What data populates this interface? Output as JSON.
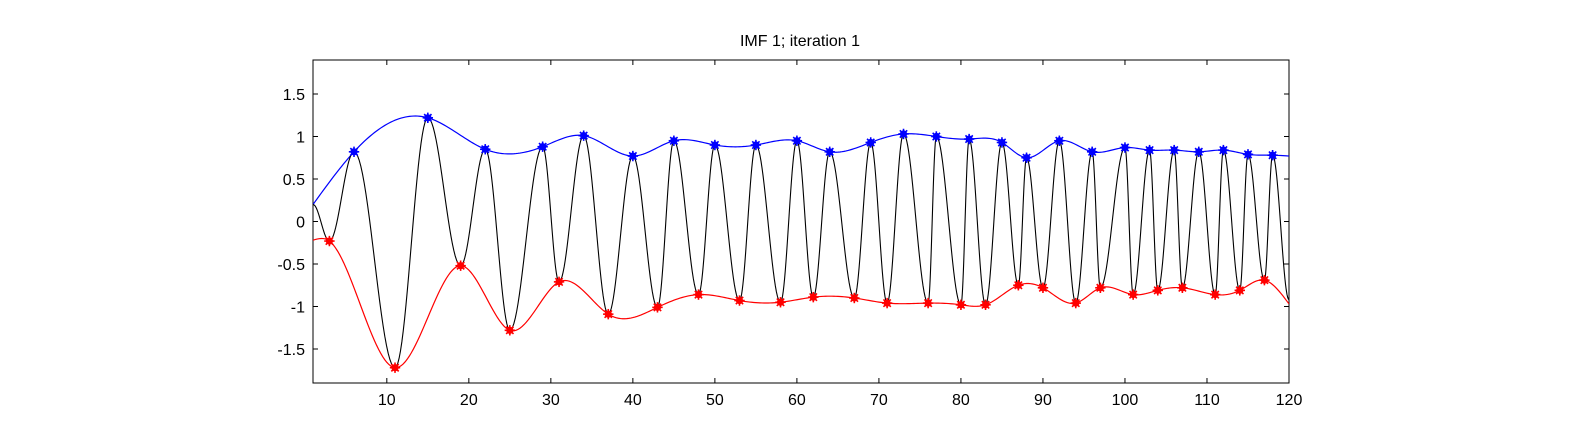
{
  "chart_data": {
    "type": "line",
    "title": "IMF 1;   iteration 1",
    "xlabel": "",
    "ylabel": "",
    "xlim": [
      1,
      120
    ],
    "ylim": [
      -1.9,
      1.9
    ],
    "x_ticks": [
      10,
      20,
      30,
      40,
      50,
      60,
      70,
      80,
      90,
      100,
      110,
      120
    ],
    "x_tick_labels": [
      "10",
      "20",
      "30",
      "40",
      "50",
      "60",
      "70",
      "80",
      "90",
      "100",
      "110",
      "120"
    ],
    "y_ticks": [
      1.5,
      1,
      0.5,
      0,
      -0.5,
      -1,
      -1.5
    ],
    "y_tick_labels": [
      "1.5",
      "1",
      "0.5",
      "0",
      "-0.5",
      "-1",
      "-1.5"
    ],
    "grid": false,
    "colors": {
      "signal": "#000000",
      "upper_envelope": "#0000ff",
      "lower_envelope": "#ff0000",
      "maxima_marker": "#0000ff",
      "minima_marker": "#ff0000"
    },
    "maxima": {
      "x": [
        6,
        15,
        22,
        29,
        34,
        40,
        45,
        50,
        55,
        60,
        64,
        69,
        73,
        77,
        81,
        85,
        88,
        92,
        96,
        100,
        103,
        106,
        109,
        112,
        115,
        118
      ],
      "y": [
        0.82,
        1.22,
        0.85,
        0.88,
        1.01,
        0.77,
        0.95,
        0.9,
        0.9,
        0.95,
        0.82,
        0.93,
        1.03,
        1.0,
        0.97,
        0.93,
        0.75,
        0.95,
        0.82,
        0.87,
        0.84,
        0.84,
        0.82,
        0.84,
        0.79,
        0.78
      ]
    },
    "minima": {
      "x": [
        3,
        11,
        19,
        25,
        31,
        37,
        43,
        48,
        53,
        58,
        62,
        67,
        71,
        76,
        80,
        83,
        87,
        90,
        94,
        97,
        101,
        104,
        107,
        111,
        114,
        117
      ],
      "y": [
        -0.23,
        -1.72,
        -0.52,
        -1.28,
        -0.71,
        -1.09,
        -1.01,
        -0.86,
        -0.93,
        -0.95,
        -0.89,
        -0.9,
        -0.96,
        -0.96,
        -0.98,
        -0.98,
        -0.75,
        -0.78,
        -0.96,
        -0.78,
        -0.86,
        -0.81,
        -0.78,
        -0.86,
        -0.81,
        -0.69
      ]
    },
    "signal_start": {
      "x": 1,
      "y": 0.2
    },
    "signal_end": {
      "x": 120,
      "y": -0.92
    },
    "upper_envelope_start": {
      "x": 1,
      "y": 0.2
    },
    "upper_envelope_end": {
      "x": 120,
      "y": 0.77
    },
    "lower_envelope_start": {
      "x": 1,
      "y": -0.22
    },
    "lower_envelope_end": {
      "x": 120,
      "y": -0.97
    }
  }
}
